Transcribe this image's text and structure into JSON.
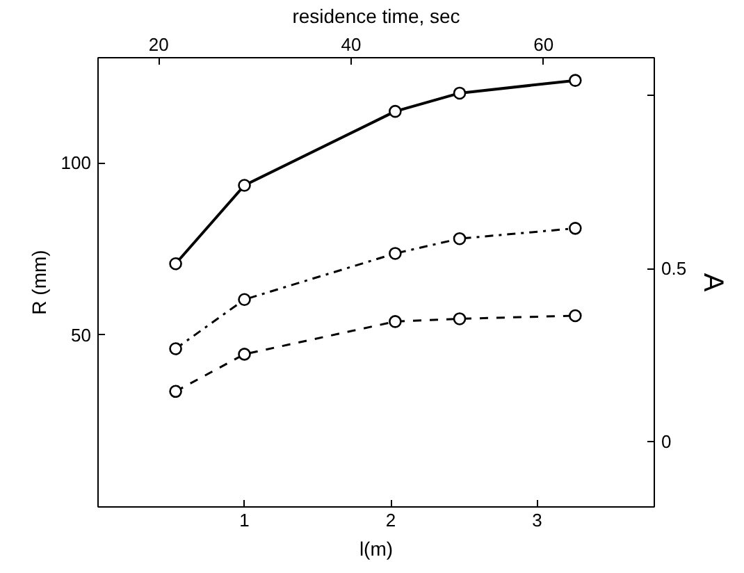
{
  "chart_data": {
    "type": "line",
    "xlabel": "l(m)",
    "ylabel": "R (mm)",
    "y2label": "A",
    "x2label": "residence time, sec",
    "xlim": [
      0,
      3.8
    ],
    "xticks": [
      1,
      2,
      3
    ],
    "x2lim": [
      13.7,
      71.5
    ],
    "x2ticks": [
      20,
      40,
      60
    ],
    "ylim": [
      0,
      130.6
    ],
    "yticks": [
      50,
      100
    ],
    "y2lim": [
      -0.19,
      1.11
    ],
    "y2ticks": [
      0,
      0.5,
      {
        "value": 1,
        "label": null
      }
    ],
    "grid": false,
    "marker": "circle",
    "x": [
      0.53,
      1.0,
      2.03,
      2.47,
      3.26
    ],
    "series": [
      {
        "color": "#000000",
        "line_style": "solid",
        "values": [
          70.7,
          93.5,
          115,
          120.3,
          124
        ]
      },
      {
        "color": "#000000",
        "line_style": "dashdot",
        "values": [
          46,
          60.3,
          73.7,
          78,
          81
        ]
      },
      {
        "color": "#000000",
        "line_style": "dashed",
        "values": [
          33.6,
          44.4,
          53.9,
          54.7,
          55.6
        ]
      }
    ]
  }
}
